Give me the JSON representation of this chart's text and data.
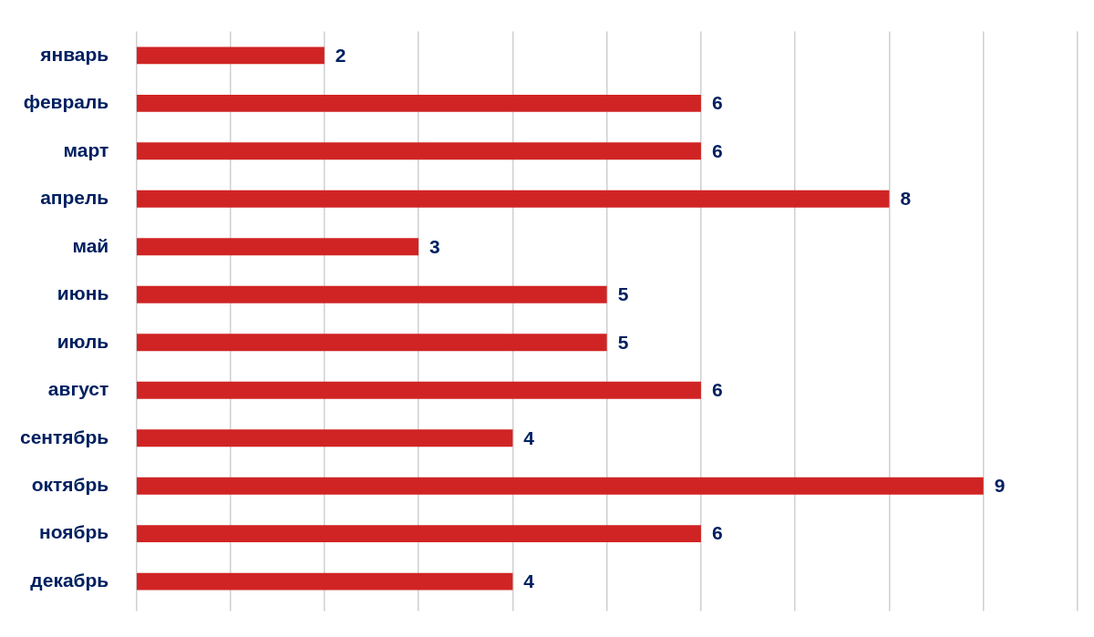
{
  "chart_data": {
    "type": "bar",
    "orientation": "horizontal",
    "categories": [
      "январь",
      "февраль",
      "март",
      "апрель",
      "май",
      "июнь",
      "июль",
      "август",
      "сентябрь",
      "октябрь",
      "ноябрь",
      "декабрь"
    ],
    "values": [
      2,
      6,
      6,
      8,
      3,
      5,
      5,
      6,
      4,
      9,
      6,
      4
    ],
    "color": "#d02424",
    "xlim": [
      0,
      10
    ],
    "xticks": [
      {
        "value": 0,
        "label": null
      },
      {
        "value": 1,
        "label": null
      },
      {
        "value": 2,
        "label": null
      },
      {
        "value": 3,
        "label": null
      },
      {
        "value": 4,
        "label": null
      },
      {
        "value": 5,
        "label": null
      },
      {
        "value": 6,
        "label": null
      },
      {
        "value": 7,
        "label": null
      },
      {
        "value": 8,
        "label": null
      },
      {
        "value": 9,
        "label": null
      },
      {
        "value": 10,
        "label": null
      }
    ],
    "grid": "x",
    "tick_labels": "y",
    "data_labels": true,
    "legend": false
  }
}
